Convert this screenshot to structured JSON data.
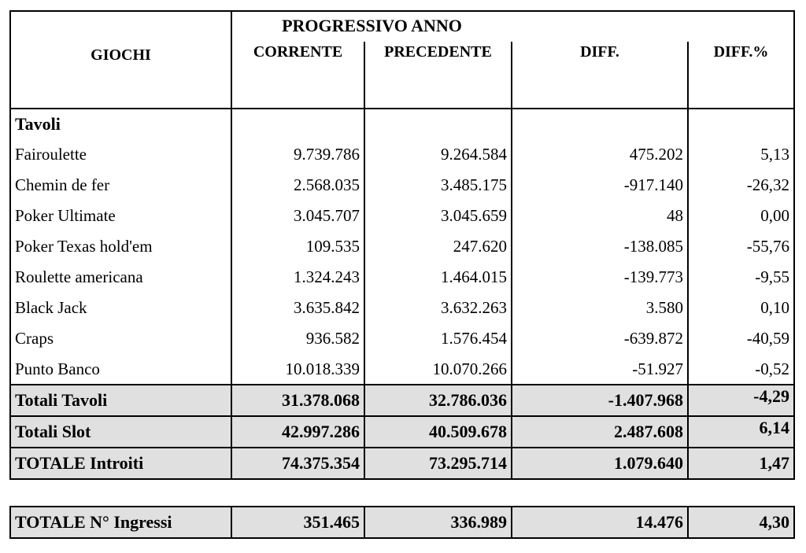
{
  "main": {
    "header": {
      "group_title": "PROGRESSIVO ANNO",
      "giochi_label": "GIOCHI",
      "col_corrente": "CORRENTE",
      "col_precedente": "PRECEDENTE",
      "col_diff": "DIFF.",
      "col_diff_pct": "DIFF.%"
    },
    "section_label": "Tavoli",
    "rows": [
      {
        "name": "Fairoulette",
        "corrente": "9.739.786",
        "precedente": "9.264.584",
        "diff": "475.202",
        "diff_pct": "5,13"
      },
      {
        "name": "Chemin de fer",
        "corrente": "2.568.035",
        "precedente": "3.485.175",
        "diff": "-917.140",
        "diff_pct": "-26,32"
      },
      {
        "name": "Poker Ultimate",
        "corrente": "3.045.707",
        "precedente": "3.045.659",
        "diff": "48",
        "diff_pct": "0,00"
      },
      {
        "name": "Poker Texas hold'em",
        "corrente": "109.535",
        "precedente": "247.620",
        "diff": "-138.085",
        "diff_pct": "-55,76"
      },
      {
        "name": "Roulette americana",
        "corrente": "1.324.243",
        "precedente": "1.464.015",
        "diff": "-139.773",
        "diff_pct": "-9,55"
      },
      {
        "name": "Black Jack",
        "corrente": "3.635.842",
        "precedente": "3.632.263",
        "diff": "3.580",
        "diff_pct": "0,10"
      },
      {
        "name": "Craps",
        "corrente": "936.582",
        "precedente": "1.576.454",
        "diff": "-639.872",
        "diff_pct": "-40,59"
      },
      {
        "name": "Punto Banco",
        "corrente": "10.018.339",
        "precedente": "10.070.266",
        "diff": "-51.927",
        "diff_pct": "-0,52"
      }
    ],
    "totals": [
      {
        "name": "Totali Tavoli",
        "corrente": "31.378.068",
        "precedente": "32.786.036",
        "diff": "-1.407.968",
        "diff_pct": "-4,29"
      },
      {
        "name": "Totali Slot",
        "corrente": "42.997.286",
        "precedente": "40.509.678",
        "diff": "2.487.608",
        "diff_pct": "6,14"
      },
      {
        "name": "TOTALE Introiti",
        "corrente": "74.375.354",
        "precedente": "73.295.714",
        "diff": "1.079.640",
        "diff_pct": "1,47"
      }
    ]
  },
  "ingressi": {
    "label": "TOTALE N° Ingressi",
    "corrente": "351.465",
    "precedente": "336.989",
    "diff": "14.476",
    "diff_pct": "4,30"
  },
  "colors": {
    "row_highlight": "#e0e0e0",
    "border": "#000000",
    "text": "#000000",
    "background": "#ffffff"
  }
}
